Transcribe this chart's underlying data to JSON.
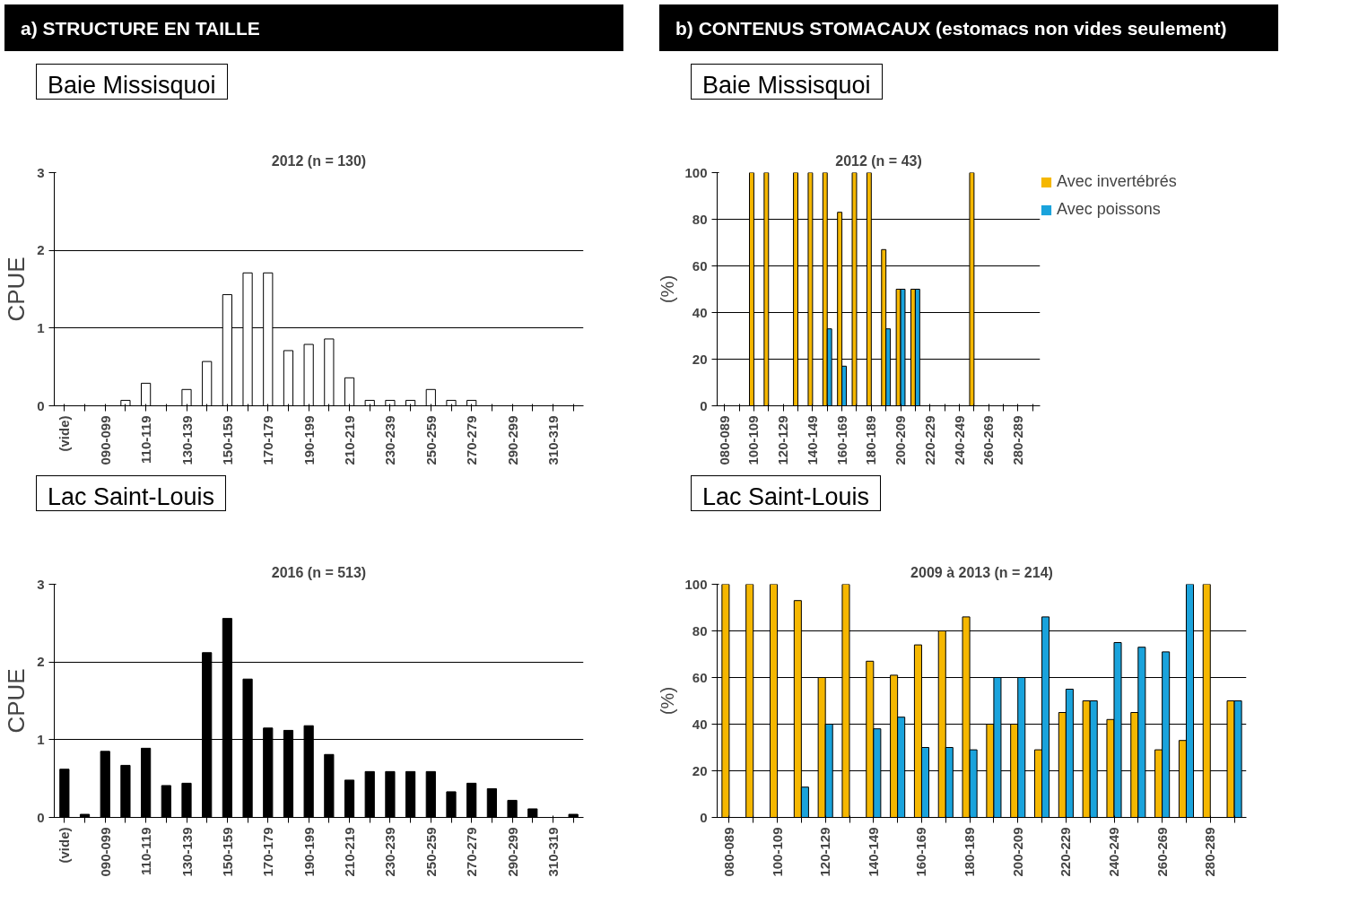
{
  "chart_data": [
    {
      "type": "bar",
      "annotations": [
        "a)  STRUCTURE EN TAILLE"
      ],
      "subtitle": "Baie Missisquoi",
      "title": "2012 (n = 130)",
      "ylabel": "CPUE",
      "categories": [
        "(vide)",
        null,
        "090-099",
        null,
        "110-119",
        null,
        "130-139",
        null,
        "150-159",
        null,
        "170-179",
        null,
        "190-199",
        null,
        "210-219",
        null,
        "230-239",
        null,
        "250-259",
        null,
        "270-279",
        null,
        "290-299",
        null,
        "310-319",
        null
      ],
      "values": [
        0,
        0,
        0,
        0.07,
        0.29,
        0,
        0.21,
        0.57,
        1.43,
        1.71,
        1.71,
        0.71,
        0.79,
        0.86,
        0.36,
        0.07,
        0.07,
        0.07,
        0.21,
        0.07,
        0.07,
        0,
        0,
        0,
        0,
        0
      ],
      "color": "#ffffff",
      "ylim": [
        0,
        3
      ],
      "yticks": [
        0,
        1,
        2,
        3
      ],
      "grid": "y"
    },
    {
      "type": "bar",
      "annotations": [
        "b) CONTENUS STOMACAUX (estomacs non vides seulement)"
      ],
      "subtitle": "Baie Missisquoi",
      "title": "2012 (n = 43)",
      "ylabel": "(%)",
      "categories": [
        "080-089",
        null,
        "100-109",
        null,
        "120-129",
        null,
        "140-149",
        null,
        "160-169",
        null,
        "180-189",
        null,
        "200-209",
        null,
        "220-229",
        null,
        "240-249",
        null,
        "260-269",
        null,
        "280-289",
        null
      ],
      "series": [
        {
          "name": "Avec invertébrés",
          "color": "#f5b700",
          "values": [
            0,
            0,
            100,
            100,
            0,
            100,
            100,
            100,
            83,
            100,
            100,
            67,
            50,
            50,
            0,
            0,
            0,
            100,
            0,
            0,
            0,
            0
          ]
        },
        {
          "name": "Avec poissons",
          "color": "#1aa3dc",
          "values": [
            0,
            0,
            0,
            0,
            0,
            0,
            0,
            33,
            17,
            0,
            0,
            33,
            50,
            50,
            0,
            0,
            0,
            0,
            0,
            0,
            0,
            0
          ]
        }
      ],
      "ylim": [
        0,
        100
      ],
      "yticks": [
        0,
        20,
        40,
        60,
        80,
        100
      ],
      "grid": "y",
      "legend": "top right"
    },
    {
      "type": "bar",
      "subtitle": "Lac Saint-Louis",
      "title": "2016 (n = 513)",
      "ylabel": "CPUE",
      "categories": [
        "(vide)",
        null,
        "090-099",
        null,
        "110-119",
        null,
        "130-139",
        null,
        "150-159",
        null,
        "170-179",
        null,
        "190-199",
        null,
        "210-219",
        null,
        "230-239",
        null,
        "250-259",
        null,
        "270-279",
        null,
        "290-299",
        null,
        "310-319",
        null
      ],
      "values": [
        0.62,
        0.04,
        0.85,
        0.67,
        0.89,
        0.41,
        0.44,
        2.12,
        2.56,
        1.78,
        1.15,
        1.12,
        1.18,
        0.81,
        0.48,
        0.59,
        0.59,
        0.59,
        0.59,
        0.33,
        0.44,
        0.37,
        0.22,
        0.11,
        0,
        0.04
      ],
      "color": "#000000",
      "ylim": [
        0,
        3
      ],
      "yticks": [
        0,
        1,
        2,
        3
      ],
      "grid": "y"
    },
    {
      "type": "bar",
      "subtitle": "Lac Saint-Louis",
      "title": "2009 à 2013 (n = 214)",
      "ylabel": "(%)",
      "categories": [
        "080-089",
        null,
        "100-109",
        null,
        "120-129",
        null,
        "140-149",
        null,
        "160-169",
        null,
        "180-189",
        null,
        "200-209",
        null,
        "220-229",
        null,
        "240-249",
        null,
        "260-269",
        null,
        "280-289",
        null
      ],
      "series": [
        {
          "color": "#f5b700",
          "values": [
            100,
            100,
            100,
            93,
            60,
            100,
            67,
            61,
            74,
            80,
            86,
            40,
            40,
            29,
            45,
            50,
            42,
            45,
            29,
            33,
            100,
            50
          ]
        },
        {
          "color": "#1aa3dc",
          "values": [
            0,
            0,
            0,
            13,
            40,
            0,
            38,
            43,
            30,
            30,
            29,
            60,
            60,
            86,
            55,
            50,
            75,
            73,
            71,
            100,
            0,
            50
          ]
        }
      ],
      "ylim": [
        0,
        100
      ],
      "yticks": [
        0,
        20,
        40,
        60,
        80,
        100
      ],
      "grid": "y"
    }
  ]
}
